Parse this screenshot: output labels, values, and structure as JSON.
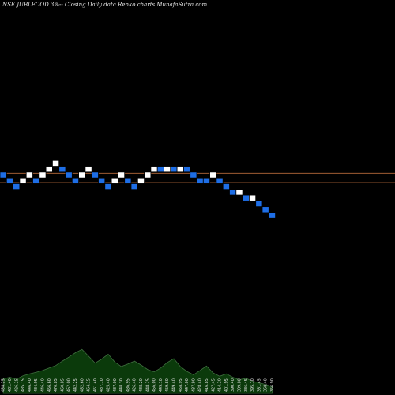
{
  "chart_title": "NSE JUBLFOOD 3%-- Closing Daily data Renko charts MunafaSutra.com",
  "colors": {
    "background": "#000000",
    "up_brick": "#ffffff",
    "down_brick": "#1e6ee6",
    "brick_outline": "#000000",
    "reference_line": "#b86a3a",
    "volume_fill": "#0b3a0b",
    "volume_line": "#3f6f3f",
    "label_text": "#e6e6e6"
  },
  "chart_data": {
    "type": "renko",
    "title": "NSE JUBLFOOD 3%-- Closing Daily data Renko charts MunafaSutra.com",
    "brick_size_percent": 3,
    "grid": false,
    "legend": "none",
    "level_range": [
      -7,
      5
    ],
    "levels": [
      0,
      -1,
      -2,
      -1,
      0,
      -1,
      0,
      1,
      2,
      1,
      0,
      -1,
      0,
      1,
      0,
      -1,
      -2,
      -1,
      0,
      -1,
      -2,
      -1,
      0,
      1,
      1,
      1,
      1,
      1,
      1,
      0,
      -1,
      -1,
      0,
      -1,
      -2,
      -3,
      -3,
      -4,
      -4,
      -5,
      -6,
      -7
    ],
    "directions": [
      "down",
      "down",
      "down",
      "up",
      "up",
      "down",
      "up",
      "up",
      "up",
      "down",
      "down",
      "down",
      "up",
      "up",
      "down",
      "down",
      "down",
      "up",
      "up",
      "down",
      "down",
      "up",
      "up",
      "up",
      "down",
      "up",
      "down",
      "up",
      "down",
      "down",
      "down",
      "down",
      "up",
      "down",
      "down",
      "down",
      "up",
      "down",
      "up",
      "down",
      "down",
      "down"
    ],
    "reference_levels": [
      0.3,
      -1.3
    ],
    "x_labels": [
      "438.25",
      "431.40",
      "426.25",
      "435.15",
      "446.40",
      "434.95",
      "446.40",
      "456.60",
      "470.85",
      "460.85",
      "452.00",
      "442.25",
      "452.60",
      "464.15",
      "451.40",
      "437.10",
      "425.40",
      "437.00",
      "448.30",
      "436.95",
      "426.40",
      "438.20",
      "448.25",
      "456.00",
      "449.10",
      "459.80",
      "449.40",
      "458.95",
      "447.00",
      "437.90",
      "428.40",
      "416.85",
      "427.45",
      "414.20",
      "401.95",
      "390.40",
      "399.80",
      "386.45",
      "395.10",
      "381.45",
      "368.40",
      "356.90"
    ],
    "volume": [
      0.3,
      0.33,
      0.29,
      0.36,
      0.4,
      0.43,
      0.47,
      0.52,
      0.57,
      0.66,
      0.74,
      0.83,
      0.9,
      0.76,
      0.62,
      0.7,
      0.8,
      0.64,
      0.55,
      0.6,
      0.66,
      0.58,
      0.49,
      0.44,
      0.52,
      0.63,
      0.71,
      0.55,
      0.45,
      0.38,
      0.47,
      0.56,
      0.42,
      0.35,
      0.4,
      0.33,
      0.28,
      0.31,
      0.25,
      0.22,
      0.18,
      0.14
    ]
  }
}
